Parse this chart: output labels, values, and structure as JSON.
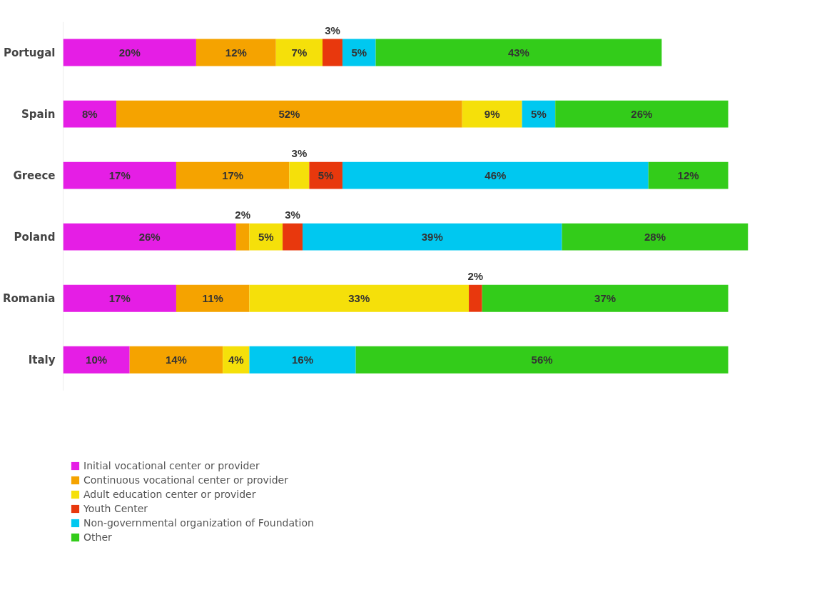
{
  "chart_data": {
    "type": "bar",
    "orientation": "horizontal",
    "stacked": true,
    "legend": "bottom left",
    "grid": false,
    "tick_labels": "y",
    "categories": [
      "Portugal",
      "Spain",
      "Greece",
      "Poland",
      "Romania",
      "Italy"
    ],
    "series": [
      {
        "name": "Initial vocational center or provider",
        "color": "#e51ee5",
        "values": [
          20,
          8,
          17,
          26,
          17,
          10
        ],
        "value_labels": [
          "20%",
          "8%",
          "17%",
          "26%",
          "17%",
          "10%"
        ]
      },
      {
        "name": "Continuous vocational center or provider",
        "color": "#f5a300",
        "values": [
          12,
          52,
          17,
          2,
          11,
          14
        ],
        "value_labels": [
          "12%",
          "52%",
          "17%",
          "2%",
          "11%",
          "14%"
        ]
      },
      {
        "name": "Adult education center or provider",
        "color": "#f5e00a",
        "values": [
          7,
          9,
          3,
          5,
          33,
          4
        ],
        "value_labels": [
          "7%",
          "9%",
          "3%",
          "5%",
          "33%",
          "4%"
        ]
      },
      {
        "name": "Youth Center",
        "color": "#e8380d",
        "values": [
          3,
          null,
          5,
          3,
          2,
          null
        ],
        "value_labels": [
          "3%",
          null,
          "5%",
          "3%",
          "2%",
          null
        ]
      },
      {
        "name": "Non-governmental organization of Foundation",
        "color": "#00c8f0",
        "values": [
          5,
          5,
          46,
          39,
          null,
          16
        ],
        "value_labels": [
          "5%",
          "5%",
          "46%",
          "39%",
          null,
          "16%"
        ]
      },
      {
        "name": "Other",
        "color": "#33cc1a",
        "values": [
          43,
          26,
          12,
          28,
          37,
          56
        ],
        "value_labels": [
          "43%",
          "26%",
          "12%",
          "28%",
          "37%",
          "56%"
        ]
      }
    ]
  }
}
